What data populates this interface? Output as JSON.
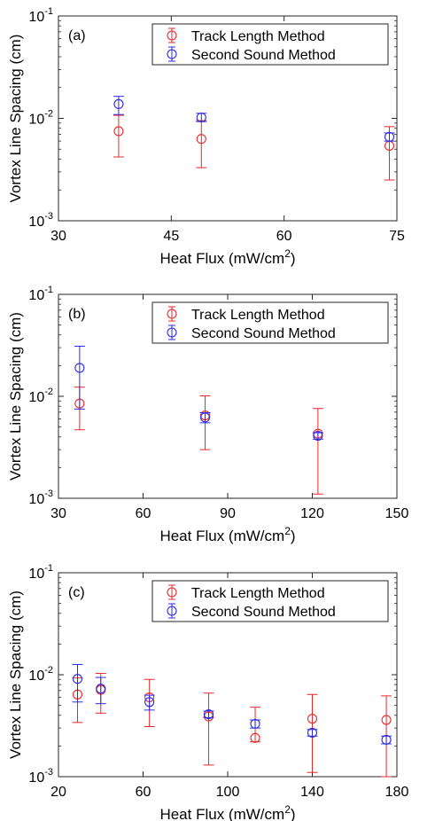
{
  "chart_data": [
    {
      "type": "scatter",
      "panel_label": "(a)",
      "xlabel": "Heat Flux (mW/cm",
      "xlabel_sup": "2",
      "xlabel_close": ")",
      "ylabel": "Vortex Line Spacing (cm)",
      "xlim": [
        30,
        75
      ],
      "ylim": [
        0.001,
        0.1
      ],
      "yscale": "log",
      "xticks": [
        30,
        45,
        60,
        75
      ],
      "yticks": [
        {
          "base": "10",
          "exp": "-3"
        },
        {
          "base": "10",
          "exp": "-2"
        },
        {
          "base": "10",
          "exp": "-1"
        }
      ],
      "legend_position": "top-right",
      "series": [
        {
          "name": "Track Length Method",
          "color": "#e8292c",
          "x": [
            38,
            49,
            74
          ],
          "y": [
            0.0075,
            0.0063,
            0.0054
          ],
          "y_low": [
            0.0042,
            0.0033,
            0.0025
          ],
          "y_high": [
            0.0107,
            0.0095,
            0.0083
          ]
        },
        {
          "name": "Second Sound Method",
          "color": "#2a2ae6",
          "x": [
            38,
            49,
            74
          ],
          "y": [
            0.0138,
            0.0102,
            0.0066
          ],
          "y_low": [
            0.0109,
            0.0093,
            0.006
          ],
          "y_high": [
            0.0164,
            0.0112,
            0.0072
          ]
        }
      ]
    },
    {
      "type": "scatter",
      "panel_label": "(b)",
      "xlabel": "Heat Flux (mW/cm",
      "xlabel_sup": "2",
      "xlabel_close": ")",
      "ylabel": "Vortex Line Spacing (cm)",
      "xlim": [
        30,
        150
      ],
      "ylim": [
        0.001,
        0.1
      ],
      "yscale": "log",
      "xticks": [
        30,
        60,
        90,
        120,
        150
      ],
      "yticks": [
        {
          "base": "10",
          "exp": "-3"
        },
        {
          "base": "10",
          "exp": "-2"
        },
        {
          "base": "10",
          "exp": "-1"
        }
      ],
      "legend_position": "top-right",
      "series": [
        {
          "name": "Track Length Method",
          "color": "#e8292c",
          "x": [
            37.5,
            82,
            122
          ],
          "y": [
            0.0085,
            0.0065,
            0.0043
          ],
          "y_low": [
            0.0047,
            0.003,
            0.0011
          ],
          "y_high": [
            0.0123,
            0.0101,
            0.0076
          ]
        },
        {
          "name": "Second Sound Method",
          "color": "#2a2ae6",
          "x": [
            37.5,
            82,
            122
          ],
          "y": [
            0.019,
            0.0062,
            0.0041
          ],
          "y_low": [
            0.0075,
            0.0055,
            0.0038
          ],
          "y_high": [
            0.031,
            0.0069,
            0.0044
          ]
        }
      ]
    },
    {
      "type": "scatter",
      "panel_label": "(c)",
      "xlabel": "Heat Flux (mW/cm",
      "xlabel_sup": "2",
      "xlabel_close": ")",
      "ylabel": "Vortex Line Spacing (cm)",
      "xlim": [
        20,
        180
      ],
      "ylim": [
        0.001,
        0.1
      ],
      "yscale": "log",
      "xticks": [
        20,
        60,
        100,
        140,
        180
      ],
      "yticks": [
        {
          "base": "10",
          "exp": "-3"
        },
        {
          "base": "10",
          "exp": "-2"
        },
        {
          "base": "10",
          "exp": "-1"
        }
      ],
      "legend_position": "top-right",
      "series": [
        {
          "name": "Track Length Method",
          "color": "#e8292c",
          "x": [
            29,
            40,
            63,
            91,
            113,
            140,
            175
          ],
          "y": [
            0.0064,
            0.0071,
            0.006,
            0.0039,
            0.0024,
            0.0037,
            0.0036
          ],
          "y_low": [
            0.0034,
            0.0042,
            0.0031,
            0.0013,
            0.0022,
            0.0011,
            0.001
          ],
          "y_high": [
            0.0093,
            0.0103,
            0.009,
            0.0066,
            0.0048,
            0.0064,
            0.0062
          ]
        },
        {
          "name": "Second Sound Method",
          "color": "#2a2ae6",
          "x": [
            29,
            40,
            63,
            91,
            113,
            140,
            175
          ],
          "y": [
            0.0091,
            0.0073,
            0.0054,
            0.0041,
            0.0033,
            0.0027,
            0.0023
          ],
          "y_low": [
            0.0054,
            0.0052,
            0.0045,
            0.0038,
            0.003,
            0.0025,
            0.0021
          ],
          "y_high": [
            0.0126,
            0.0094,
            0.0063,
            0.0044,
            0.0036,
            0.0029,
            0.0025
          ]
        }
      ]
    }
  ]
}
